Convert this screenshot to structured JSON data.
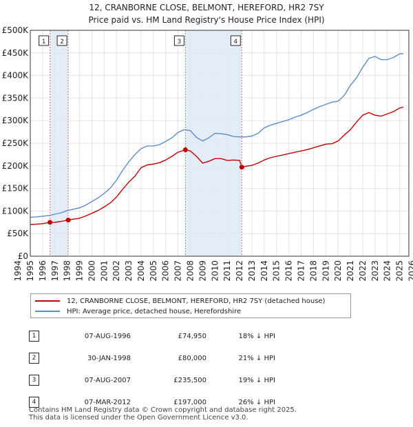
{
  "chart_data": {
    "type": "line",
    "title": "12, CRANBORNE CLOSE, BELMONT, HEREFORD, HR2 7SY",
    "subtitle": "Price paid vs. HM Land Registry's House Price Index (HPI)",
    "xlim": [
      1995.0,
      2025.75
    ],
    "ylim": [
      0,
      500000
    ],
    "xticks": [
      1994,
      1995,
      1996,
      1997,
      1998,
      1999,
      2000,
      2001,
      2002,
      2003,
      2004,
      2005,
      2006,
      2007,
      2008,
      2009,
      2010,
      2011,
      2012,
      2013,
      2014,
      2015,
      2016,
      2017,
      2018,
      2019,
      2020,
      2021,
      2022,
      2023,
      2024,
      2025,
      2026
    ],
    "yticks": [
      {
        "value": 0,
        "label": "£0"
      },
      {
        "value": 50000,
        "label": "£50K"
      },
      {
        "value": 100000,
        "label": "£100K"
      },
      {
        "value": 150000,
        "label": "£150K"
      },
      {
        "value": 200000,
        "label": "£200K"
      },
      {
        "value": 250000,
        "label": "£250K"
      },
      {
        "value": 300000,
        "label": "£300K"
      },
      {
        "value": 350000,
        "label": "£350K"
      },
      {
        "value": 400000,
        "label": "£400K"
      },
      {
        "value": 450000,
        "label": "£450K"
      },
      {
        "value": 500000,
        "label": "£500K"
      }
    ],
    "series": [
      {
        "name": "HPI: Average price, detached house, Herefordshire",
        "color": "#5b8dc9",
        "x": [
          1995.0,
          1995.5,
          1996.0,
          1996.5,
          1997.0,
          1997.5,
          1998.0,
          1998.5,
          1999.0,
          1999.5,
          2000.0,
          2000.5,
          2001.0,
          2001.5,
          2002.0,
          2002.5,
          2003.0,
          2003.5,
          2004.0,
          2004.5,
          2005.0,
          2005.5,
          2006.0,
          2006.5,
          2007.0,
          2007.5,
          2008.0,
          2008.5,
          2009.0,
          2009.5,
          2010.0,
          2010.5,
          2011.0,
          2011.5,
          2012.0,
          2012.5,
          2013.0,
          2013.5,
          2014.0,
          2014.5,
          2015.0,
          2015.5,
          2016.0,
          2016.5,
          2017.0,
          2017.5,
          2018.0,
          2018.5,
          2019.0,
          2019.5,
          2020.0,
          2020.5,
          2021.0,
          2021.5,
          2022.0,
          2022.5,
          2023.0,
          2023.5,
          2024.0,
          2024.5,
          2025.0,
          2025.3
        ],
        "values": [
          86000,
          87000,
          88500,
          90000,
          93000,
          96000,
          101000,
          104000,
          107000,
          113000,
          121000,
          129000,
          139000,
          151000,
          168000,
          190000,
          209000,
          225000,
          238000,
          244000,
          244000,
          247000,
          254000,
          262000,
          274000,
          280000,
          278000,
          263000,
          255000,
          262000,
          272000,
          271000,
          269000,
          265000,
          264000,
          264000,
          266000,
          272000,
          284000,
          290000,
          294000,
          298000,
          302000,
          308000,
          312000,
          318000,
          325000,
          331000,
          336000,
          341000,
          343000,
          356000,
          378000,
          395000,
          418000,
          438000,
          442000,
          435000,
          435000,
          440000,
          448000,
          448000
        ]
      },
      {
        "name": "12, CRANBORNE CLOSE, BELMONT, HEREFORD, HR2 7SY (detached house)",
        "color": "#c00000",
        "x": [
          1995.0,
          1995.5,
          1996.0,
          1996.6,
          1997.0,
          1997.5,
          1998.08,
          1998.5,
          1999.0,
          1999.5,
          2000.0,
          2000.5,
          2001.0,
          2001.5,
          2002.0,
          2002.5,
          2003.0,
          2003.5,
          2004.0,
          2004.5,
          2005.0,
          2005.5,
          2006.0,
          2006.5,
          2007.0,
          2007.6,
          2008.0,
          2008.5,
          2009.0,
          2009.5,
          2010.0,
          2010.5,
          2011.0,
          2011.5,
          2012.0,
          2012.18,
          2012.5,
          2013.0,
          2013.5,
          2014.0,
          2014.5,
          2015.0,
          2015.5,
          2016.0,
          2016.5,
          2017.0,
          2017.5,
          2018.0,
          2018.5,
          2019.0,
          2019.5,
          2020.0,
          2020.5,
          2021.0,
          2021.5,
          2022.0,
          2022.5,
          2023.0,
          2023.5,
          2024.0,
          2024.5,
          2025.0,
          2025.3
        ],
        "values": [
          70000,
          71000,
          72000,
          74950,
          75000,
          77000,
          80000,
          82000,
          84000,
          89000,
          95000,
          101000,
          109000,
          118000,
          131000,
          148000,
          164000,
          177000,
          196000,
          202000,
          204000,
          207000,
          213000,
          221000,
          230000,
          235500,
          233000,
          221000,
          206000,
          210000,
          216000,
          216000,
          212000,
          213000,
          212000,
          197000,
          199000,
          201000,
          206000,
          213000,
          218000,
          221000,
          224000,
          227000,
          230000,
          233000,
          236000,
          240000,
          244000,
          248000,
          249000,
          255000,
          268000,
          280000,
          297000,
          312000,
          318000,
          312000,
          310000,
          315000,
          320000,
          328000,
          330000
        ]
      }
    ],
    "sales": [
      {
        "n": "1",
        "x": 1996.6,
        "price": 74950
      },
      {
        "n": "2",
        "x": 1998.08,
        "price": 80000
      },
      {
        "n": "3",
        "x": 2007.6,
        "price": 235500
      },
      {
        "n": "4",
        "x": 2012.18,
        "price": 197000
      }
    ],
    "shaded_ranges": [
      [
        1996.6,
        1998.08
      ],
      [
        2007.6,
        2012.18
      ]
    ]
  },
  "legend": {
    "property_label": "12, CRANBORNE CLOSE, BELMONT, HEREFORD, HR2 7SY (detached house)",
    "hpi_label": "HPI: Average price, detached house, Herefordshire",
    "property_color": "#c00000",
    "hpi_color": "#5b8dc9"
  },
  "table": [
    {
      "n": "1",
      "date": "07-AUG-1996",
      "price": "£74,950",
      "hpi": "18% ↓ HPI"
    },
    {
      "n": "2",
      "date": "30-JAN-1998",
      "price": "£80,000",
      "hpi": "21% ↓ HPI"
    },
    {
      "n": "3",
      "date": "07-AUG-2007",
      "price": "£235,500",
      "hpi": "19% ↓ HPI"
    },
    {
      "n": "4",
      "date": "07-MAR-2012",
      "price": "£197,000",
      "hpi": "26% ↓ HPI"
    }
  ],
  "footer": {
    "line1": "Contains HM Land Registry data © Crown copyright and database right 2025.",
    "line2": "This data is licensed under the Open Government Licence v3.0."
  }
}
